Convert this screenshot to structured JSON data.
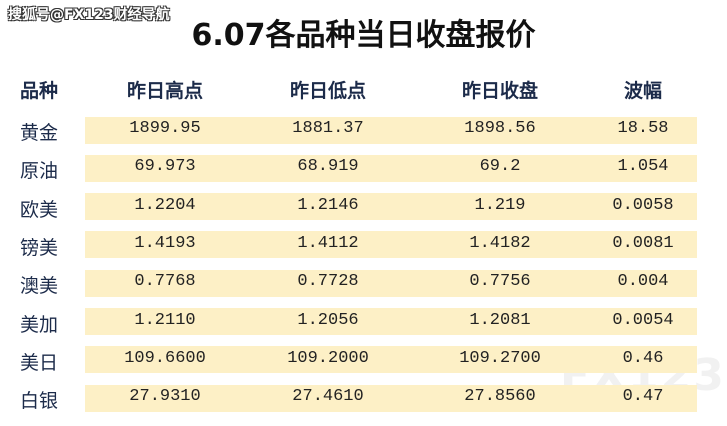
{
  "watermark": "搜狐号@FX123财经导航",
  "title": "6.07各品种当日收盘报价",
  "logo": "FX123",
  "table": {
    "header": [
      "品种",
      "昨日高点",
      "昨日低点",
      "昨日收盘",
      "波幅"
    ],
    "rows": [
      [
        "黄金",
        "1899.95",
        "1881.37",
        "1898.56",
        "18.58"
      ],
      [
        "原油",
        "69.973",
        "68.919",
        "69.2",
        "1.054"
      ],
      [
        "欧美",
        "1.2204",
        "1.2146",
        "1.219",
        "0.0058"
      ],
      [
        "镑美",
        "1.4193",
        "1.4112",
        "1.4182",
        "0.0081"
      ],
      [
        "澳美",
        "0.7768",
        "0.7728",
        "0.7756",
        "0.004"
      ],
      [
        "美加",
        "1.2110",
        "1.2056",
        "1.2081",
        "0.0054"
      ],
      [
        "美日",
        "109.6600",
        "109.2000",
        "109.2700",
        "0.46"
      ],
      [
        "白银",
        "27.9310",
        "27.4610",
        "27.8560",
        "0.47"
      ]
    ]
  }
}
